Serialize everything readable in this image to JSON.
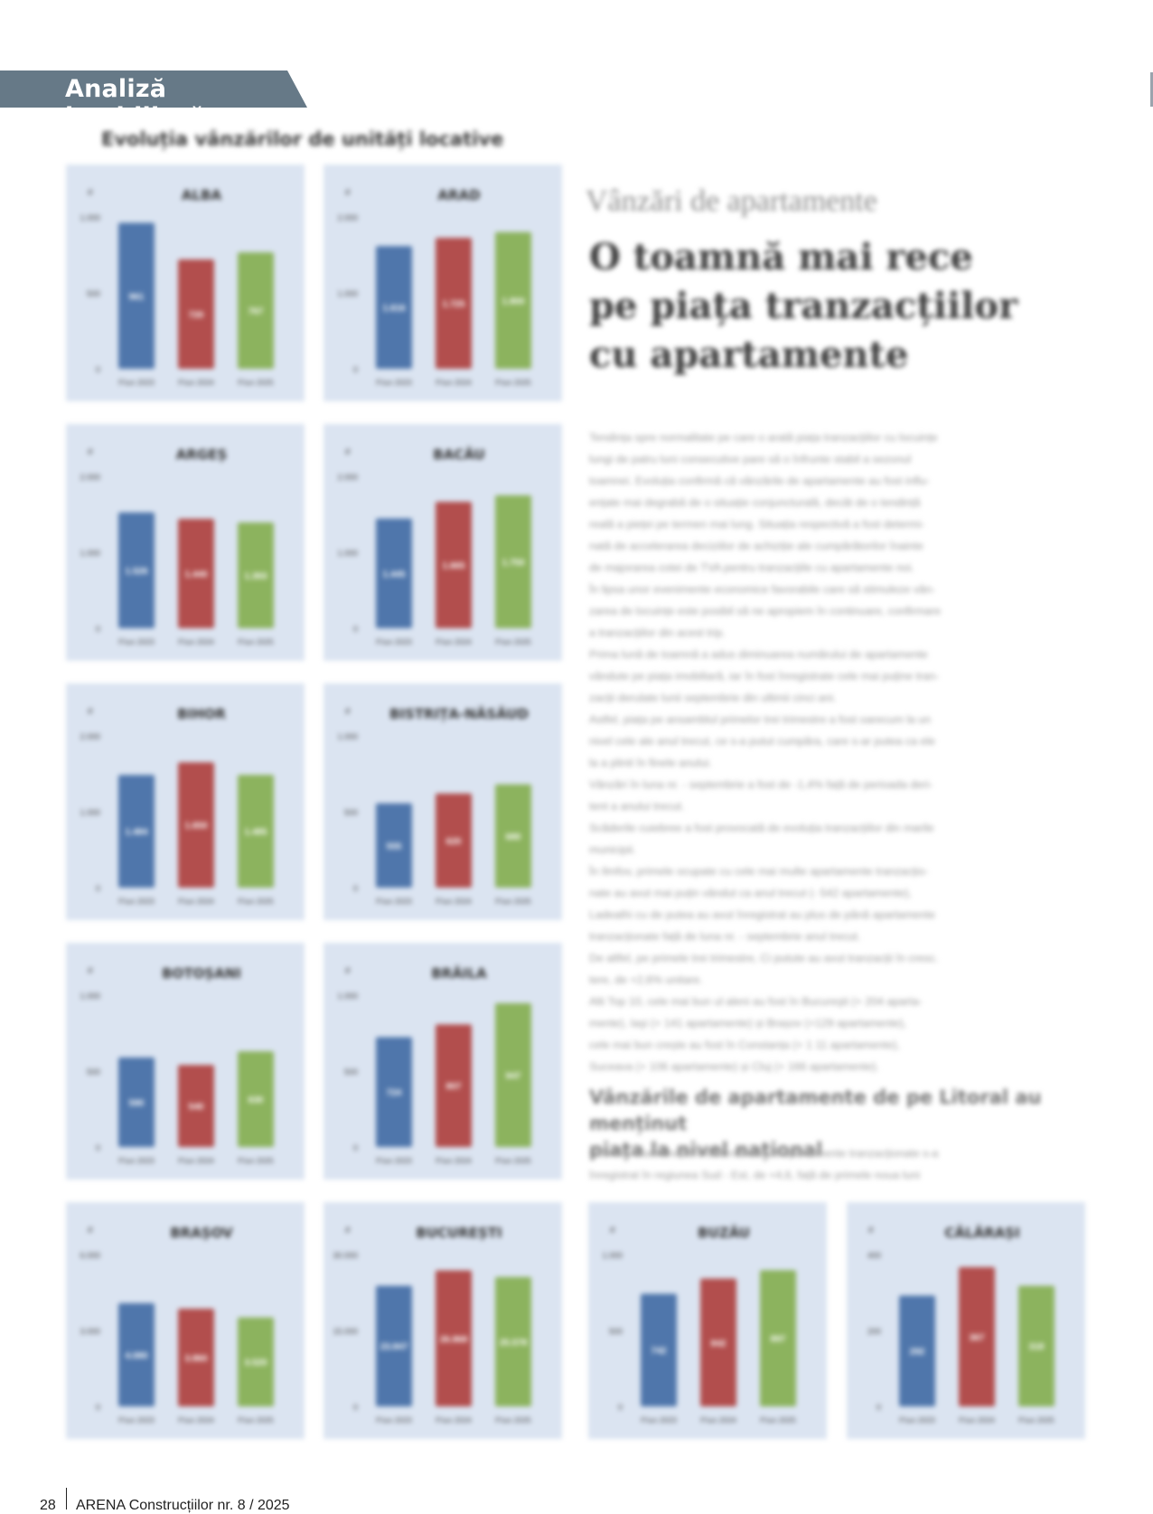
{
  "section_tag": {
    "label": "Analiză imobiliară",
    "color": "#667987"
  },
  "charts_heading": "Evoluția vânzărilor de unități locative",
  "article": {
    "kicker": "Vânzări de apartamente",
    "headline": [
      "O toamnă mai rece",
      "pe piața tranzacțiilor",
      "cu apartamente"
    ],
    "paragraphs": [
      "Tendința spre normalitate pe care o arată piața tranzacțiilor cu locuințe",
      "lungi de patru luni consecutive pare să o înfrunte stabil a sezonul",
      "toamnei. Evoluția confirmă că vânzările de apartamente au fost influ-",
      "ențate mai degrabă de o situație conjuncturală, decât de o tendință",
      "reală a pieței pe termen mai lung. Situația respectivă a fost determi-",
      "nată de accelerarea deciziilor de achiziție ale cumpărătorilor înainte",
      "de majorarea cotei de TVA pentru tranzacțiile cu apartamente noi.",
      "În lipsa unor evenimente economice favorabile care să stimuleze vân-",
      "zarea de locuințe este posibil să ne apropiem în continuare, confirmare",
      "a tranzacțiilor din acest trip.",
      "Prima lună de toamnă a adus diminuarea numărului de apartamente",
      "vândute pe piața imobiliară, iar în fost înregistrate cele mai puține tran-",
      "zacții derulate lunii septembrie din ultimii cinci ani.",
      "Astfel, piața pe ansamblul primelor trei trimestre a fost oarecum la un",
      "nivel cele ale anul trecut, ce s-a putut cumpăra, care s-ar putea ca ele",
      "la a plinit în finele anului.",
      "Vânzări în luna nr. - septembrie a fost de -1,4% față de perioada deri-",
      "tent a anului trecut.",
      "Scăderile cuiebree a fost provocată de evoluția tranzacțiilor din marile",
      "municipii.",
      "În Ilmfov, primele ocupate cu cele mai multe apartamente tranzacțio-",
      "nate au avut mai puțin vândut ca anul trecut (- 542 apartamente),",
      "Ladeathi cu de putea au avut înregistrat au plus de până apartamente",
      "tranzacționate față de luna nr. - septembrie anul trecut.",
      "De altfel, pe primele trei trimestre, Ci putute au avut tranzacții în cresc.",
      "tere, de +2,6% unitare.",
      "Alti Top 10, cele mai bun ul aleni au fost în Bucureşti (+ 204 aparta-",
      "mente), Iaşi (+ 141 apartamente) și Brașov (+129 apartamente),",
      "cele mai bun crește au fost în Constanța (+ 1 11 apartamente),",
      "Suceava (+ 106 apartamente) și Cluj (+ 166 apartamente)."
    ],
    "subheading": [
      "Vânzările de apartamente de pe Litoral au menținut",
      "piața la nivel național"
    ],
    "paragraphs2": [
      "Cea mai mare creștere a numărului de apartamente tranzacționate s-a",
      "înregistrat în regiunea Sud - Est, de +4,6, față de primele noua luni"
    ]
  },
  "chart_data": [
    {
      "type": "bar",
      "title": "ALBA",
      "unit": "#",
      "yticks": [
        "1.000",
        "500",
        "0"
      ],
      "ylim": [
        0,
        1000
      ],
      "categories": [
        "P.lun 2023",
        "P.lun 2024",
        "P.lun 2025"
      ],
      "values": [
        961,
        720,
        767
      ],
      "labels": [
        "961",
        "720",
        "767"
      ]
    },
    {
      "type": "bar",
      "title": "ARAD",
      "unit": "#",
      "yticks": [
        "2.000",
        "1.000",
        "0"
      ],
      "ylim": [
        0,
        2000
      ],
      "categories": [
        "P.lun 2023",
        "P.lun 2024",
        "P.lun 2025"
      ],
      "values": [
        1616,
        1725,
        1800
      ],
      "labels": [
        "1.616",
        "1.725",
        "1.800"
      ]
    },
    {
      "type": "bar",
      "title": "ARGEȘ",
      "unit": "#",
      "yticks": [
        "2.000",
        "1.000",
        "0"
      ],
      "ylim": [
        0,
        2000
      ],
      "categories": [
        "P.lun 2023",
        "P.lun 2024",
        "P.lun 2025"
      ],
      "values": [
        1526,
        1440,
        1393
      ],
      "labels": [
        "1.526",
        "1.440",
        "1.393"
      ]
    },
    {
      "type": "bar",
      "title": "BACĂU",
      "unit": "#",
      "yticks": [
        "2.000",
        "1.000",
        "0"
      ],
      "ylim": [
        0,
        2000
      ],
      "categories": [
        "P.lun 2023",
        "P.lun 2024",
        "P.lun 2025"
      ],
      "values": [
        1445,
        1665,
        1750
      ],
      "labels": [
        "1.445",
        "1.665",
        "1.750"
      ]
    },
    {
      "type": "bar",
      "title": "BIHOR",
      "unit": "#",
      "yticks": [
        "2.000",
        "1.000",
        "0"
      ],
      "ylim": [
        0,
        2000
      ],
      "categories": [
        "P.lun 2023",
        "P.lun 2024",
        "P.lun 2025"
      ],
      "values": [
        1484,
        1650,
        1485
      ],
      "labels": [
        "1.484",
        "1.650",
        "1.485"
      ]
    },
    {
      "type": "bar",
      "title": "BISTRIȚA-NĂSĂUD",
      "unit": "#",
      "yticks": [
        "1.000",
        "500",
        "0"
      ],
      "ylim": [
        0,
        1000
      ],
      "categories": [
        "P.lun 2023",
        "P.lun 2024",
        "P.lun 2025"
      ],
      "values": [
        555,
        620,
        680
      ],
      "labels": [
        "555",
        "620",
        "680"
      ]
    },
    {
      "type": "bar",
      "title": "BOTOȘANI",
      "unit": "#",
      "yticks": [
        "1.000",
        "500",
        "0"
      ],
      "ylim": [
        0,
        1000
      ],
      "categories": [
        "P.lun 2023",
        "P.lun 2024",
        "P.lun 2025"
      ],
      "values": [
        590,
        540,
        630
      ],
      "labels": [
        "590",
        "540",
        "630"
      ]
    },
    {
      "type": "bar",
      "title": "BRĂILA",
      "unit": "#",
      "yticks": [
        "1.000",
        "500",
        "0"
      ],
      "ylim": [
        0,
        1000
      ],
      "categories": [
        "P.lun 2023",
        "P.lun 2024",
        "P.lun 2025"
      ],
      "values": [
        724,
        807,
        947
      ],
      "labels": [
        "724",
        "807",
        "947"
      ]
    },
    {
      "type": "bar",
      "title": "BRAȘOV",
      "unit": "#",
      "yticks": [
        "6.000",
        "3.000",
        "0"
      ],
      "ylim": [
        0,
        6000
      ],
      "categories": [
        "P.lun 2023",
        "P.lun 2024",
        "P.lun 2025"
      ],
      "values": [
        4080,
        3860,
        3520
      ],
      "labels": [
        "4.080",
        "3.860",
        "3.520"
      ]
    },
    {
      "type": "bar",
      "title": "BUCUREȘTI",
      "unit": "#",
      "yticks": [
        "30.000",
        "15.000",
        "0"
      ],
      "ylim": [
        0,
        30000
      ],
      "categories": [
        "P.lun 2023",
        "P.lun 2024",
        "P.lun 2025"
      ],
      "values": [
        23847,
        26868,
        25578
      ],
      "labels": [
        "23.847",
        "26.868",
        "25.578"
      ]
    },
    {
      "type": "bar",
      "title": "BUZĂU",
      "unit": "#",
      "yticks": [
        "1.000",
        "500",
        "0"
      ],
      "ylim": [
        0,
        1000
      ],
      "categories": [
        "P.lun 2023",
        "P.lun 2024",
        "P.lun 2025"
      ],
      "values": [
        742,
        842,
        897
      ],
      "labels": [
        "742",
        "842",
        "897"
      ]
    },
    {
      "type": "bar",
      "title": "CĂLĂRAȘI",
      "unit": "#",
      "yticks": [
        "400",
        "200",
        "0"
      ],
      "ylim": [
        0,
        400
      ],
      "categories": [
        "P.lun 2023",
        "P.lun 2024",
        "P.lun 2025"
      ],
      "values": [
        292,
        367,
        318
      ],
      "labels": [
        "292",
        "367",
        "318"
      ]
    }
  ],
  "colors": {
    "bar_1": "#4f76ab",
    "bar_2": "#b24e4d",
    "bar_3": "#8cb35e",
    "panel_bg": "#dbe4f1"
  },
  "footer": {
    "page_number": "28",
    "magazine": "ARENA Construcțiilor nr. 8 / 2025"
  }
}
